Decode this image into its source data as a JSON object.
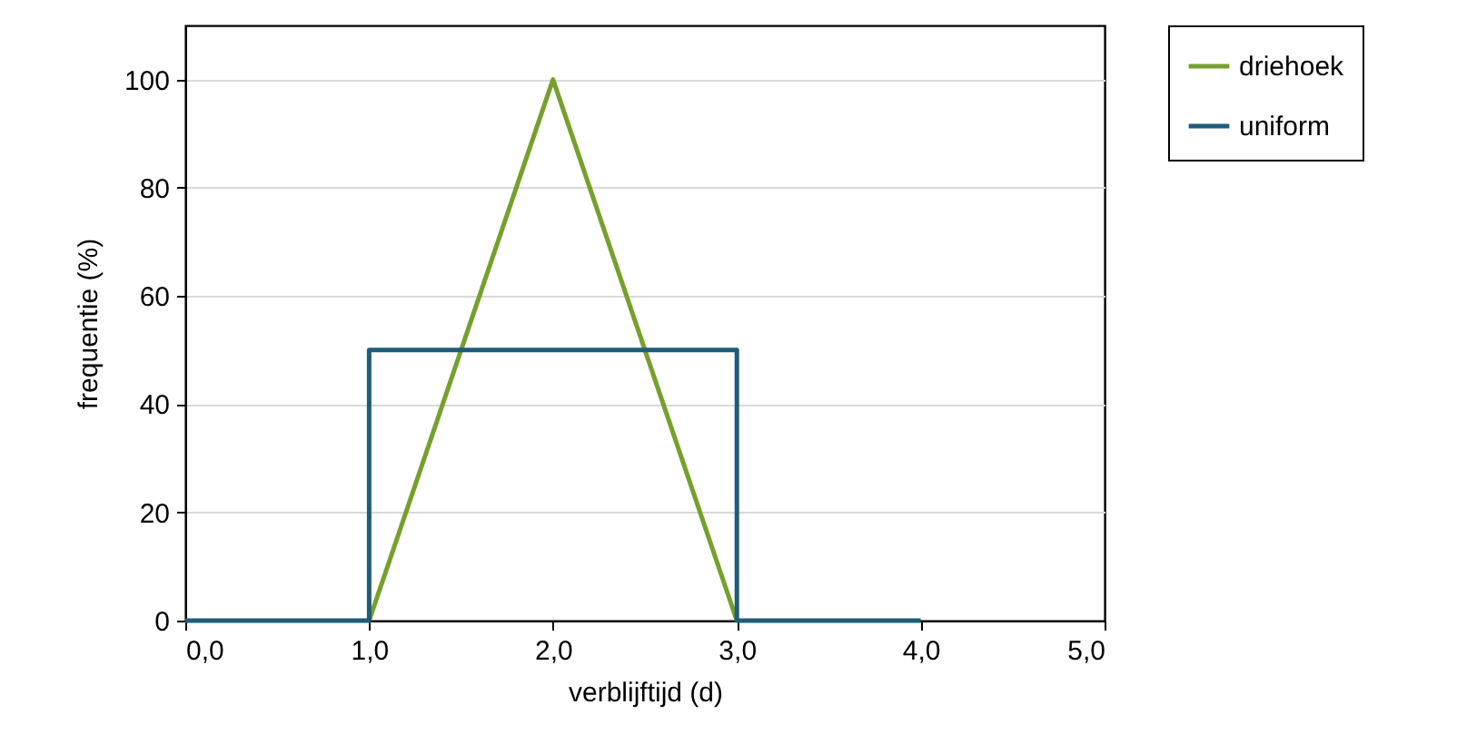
{
  "chart_data": {
    "type": "line",
    "xlabel": "verblijftijd (d)",
    "ylabel": "frequentie (%)",
    "series": [
      {
        "name": "driehoek",
        "color": "#76a02c",
        "x": [
          1,
          2,
          3
        ],
        "values": [
          0,
          100,
          0
        ]
      },
      {
        "name": "uniform",
        "color": "#1f5c7a",
        "x": [
          0,
          1,
          1,
          3,
          3,
          4
        ],
        "values": [
          0,
          0,
          50,
          50,
          0,
          0
        ]
      }
    ],
    "xlim": [
      0,
      5
    ],
    "xticks": [
      {
        "value": 0,
        "label": "0,0"
      },
      {
        "value": 1,
        "label": "1,0"
      },
      {
        "value": 2,
        "label": "2,0"
      },
      {
        "value": 3,
        "label": "3,0"
      },
      {
        "value": 4,
        "label": "4,0"
      },
      {
        "value": 5,
        "label": "5,0"
      }
    ],
    "ylim": [
      0,
      110
    ],
    "yticks": [
      0,
      20,
      40,
      60,
      80,
      100
    ],
    "grid": "y",
    "legend": "right"
  }
}
